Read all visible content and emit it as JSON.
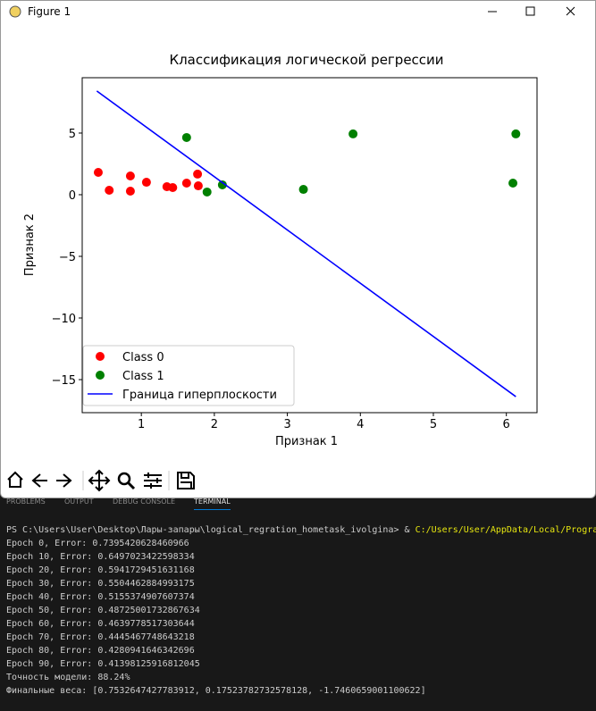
{
  "window": {
    "title": "Figure 1"
  },
  "chart_data": {
    "type": "scatter",
    "title": "Классификация логической регрессии",
    "x_label": "Признак 1",
    "y_label": "Признак  2",
    "xlim": [
      0.19,
      6.42
    ],
    "ylim": [
      -17.68,
      9.49
    ],
    "xticks": [
      1,
      2,
      3,
      4,
      5,
      6
    ],
    "yticks": [
      {
        "value": -15,
        "label": "−15"
      },
      {
        "value": -10,
        "label": "−10"
      },
      {
        "value": -5,
        "label": "−5"
      },
      0,
      5
    ],
    "legend": "lower left",
    "series": [
      {
        "name": "Class 0",
        "color": "#ff0000",
        "type": "scatter",
        "x": [
          0.41,
          0.56,
          0.85,
          0.85,
          1.07,
          1.35,
          1.43,
          1.62,
          1.77,
          1.78
        ],
        "values": [
          1.81,
          0.36,
          1.52,
          0.29,
          1.01,
          0.65,
          0.58,
          0.94,
          1.67,
          0.72
        ]
      },
      {
        "name": "Class 1",
        "color": "#008000",
        "type": "scatter",
        "x": [
          1.62,
          1.9,
          2.11,
          3.22,
          3.9,
          6.09,
          6.13
        ],
        "values": [
          4.64,
          0.22,
          0.8,
          0.43,
          4.93,
          0.94,
          4.93
        ]
      },
      {
        "name": "Граница гиперплоскости",
        "color": "#0000ff",
        "type": "line",
        "x": [
          0.39,
          6.13
        ],
        "values": [
          8.41,
          -16.38
        ]
      }
    ]
  },
  "terminal": {
    "tabs": [
      "PROBLEMS",
      "OUTPUT",
      "DEBUG CONSOLE",
      "TERMINAL"
    ],
    "prompt": "PS C:\\Users\\User\\Desktop\\Лары-запары\\logical_regration_hometask_ivolgina> & ",
    "command": "C:/Users/User/AppData/Local/Progra",
    "lines": [
      "Epoch 0, Error: 0.7395420628460966",
      "Epoch 10, Error: 0.6497023422598334",
      "Epoch 20, Error: 0.5941729451631168",
      "Epoch 30, Error: 0.5504462884993175",
      "Epoch 40, Error: 0.5155374907607374",
      "Epoch 50, Error: 0.48725001732867634",
      "Epoch 60, Error: 0.4639778517303644",
      "Epoch 70, Error: 0.4445467748643218",
      "Epoch 80, Error: 0.4280941646342696",
      "Epoch 90, Error: 0.41398125916812045",
      "Точность модели: 88.24%",
      "Финальные веса: [0.7532647427783912, 0.17523782732578128, -1.7460659001100622]"
    ]
  }
}
